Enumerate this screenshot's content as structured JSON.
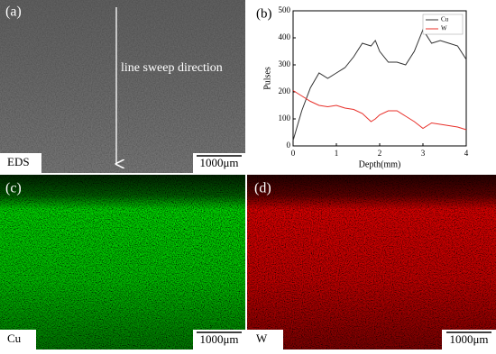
{
  "chart_data": {
    "type": "line",
    "x_label": "Depth(mm)",
    "y_label": "Pulses",
    "x": [
      0,
      0.2,
      0.4,
      0.6,
      0.8,
      1.0,
      1.2,
      1.4,
      1.6,
      1.8,
      1.9,
      2.0,
      2.2,
      2.4,
      2.6,
      2.8,
      3.0,
      3.2,
      3.4,
      3.6,
      3.8,
      4.0
    ],
    "series": [
      {
        "name": "Cu",
        "color": "#333333",
        "values": [
          20,
          130,
          215,
          270,
          250,
          270,
          290,
          330,
          380,
          370,
          390,
          350,
          310,
          310,
          300,
          350,
          430,
          380,
          390,
          380,
          370,
          320
        ]
      },
      {
        "name": "W",
        "color": "#e8302a",
        "values": [
          205,
          185,
          165,
          150,
          145,
          150,
          140,
          135,
          120,
          90,
          100,
          115,
          130,
          130,
          110,
          90,
          65,
          85,
          80,
          75,
          70,
          60
        ]
      }
    ],
    "xlim": [
      0,
      4
    ],
    "xticks": [
      0,
      1,
      2,
      3,
      4
    ],
    "ylim": [
      0,
      500
    ],
    "yticks": [
      0,
      100,
      200,
      300,
      400,
      500
    ],
    "legend": "top-right"
  },
  "panels": {
    "a": {
      "label": "(a)",
      "annotation": "line sweep direction",
      "caption": "EDS",
      "scale": "1000μm"
    },
    "b": {
      "label": "(b)"
    },
    "c": {
      "label": "(c)",
      "caption": "Cu",
      "scale": "1000μm"
    },
    "d": {
      "label": "(d)",
      "caption": "W",
      "scale": "1000μm"
    }
  }
}
